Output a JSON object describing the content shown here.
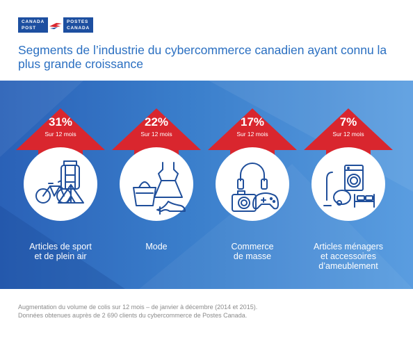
{
  "logo": {
    "line1_left": "CANADA",
    "line2_left": "POST",
    "line1_right": "POSTES",
    "line2_right": "CANADA"
  },
  "title": "Segments de l’industrie du cybercommerce canadien ayant connu la plus grande croissance",
  "segments": [
    {
      "pct": "31%",
      "period": "Sur 12 mois",
      "label_lines": [
        "Articles de sport",
        "et de plein air"
      ],
      "icon": "bicycle-backpack-tent-icon"
    },
    {
      "pct": "22%",
      "period": "Sur 12 mois",
      "label_lines": [
        "Mode"
      ],
      "icon": "handbag-dress-shoe-icon"
    },
    {
      "pct": "17%",
      "period": "Sur 12 mois",
      "label_lines": [
        "Commerce",
        "de masse"
      ],
      "icon": "headphones-camera-gamepad-icon"
    },
    {
      "pct": "7%",
      "period": "Sur 12 mois",
      "label_lines": [
        "Articles ménagers",
        "et accessoires",
        "d’ameublement"
      ],
      "icon": "vacuum-washer-bed-icon"
    }
  ],
  "footnote": {
    "line1": "Augmentation du volume de colis sur 12 mois – de janvier à décembre (2014 et 2015).",
    "line2": "Données obtenues auprès de 2 690 clients du cybercommerce de Postes Canada."
  },
  "colors": {
    "arrow": "#d9262e",
    "title": "#2a6fc1",
    "panel_start": "#2a61b7",
    "panel_end": "#5a9de0",
    "icon_stroke": "#1f4e9a",
    "brand": "#1d4fa0"
  }
}
